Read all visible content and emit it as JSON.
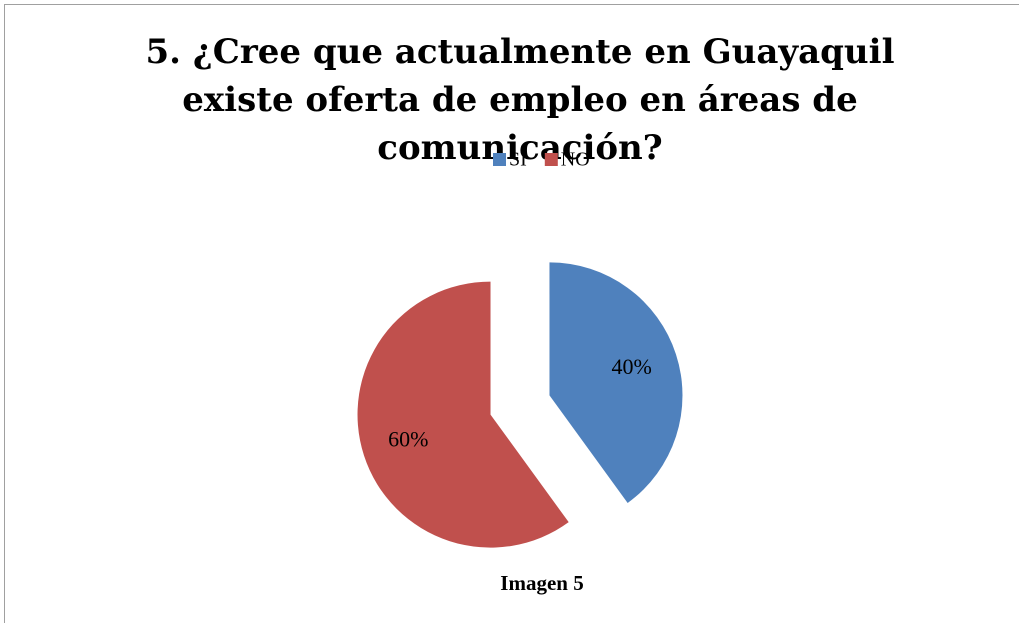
{
  "chart_data": {
    "type": "pie",
    "title": "5. ¿Cree que actualmente en Guayaquil existe oferta de empleo en áreas de comunicación?",
    "categories": [
      "SI",
      "NO"
    ],
    "values": [
      40,
      60
    ],
    "value_labels": [
      "40%",
      "60%"
    ],
    "colors": [
      "#4f81bd",
      "#c0504d"
    ],
    "legend": "top",
    "caption": "Imagen 5"
  }
}
